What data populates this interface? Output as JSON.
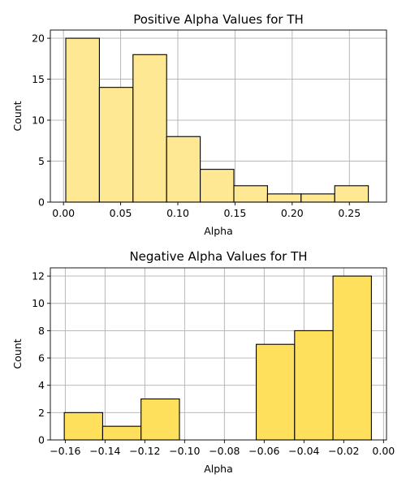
{
  "chart_data": [
    {
      "type": "bar",
      "title": "Positive Alpha Values for TH",
      "xlabel": "Alpha",
      "ylabel": "Count",
      "xlim": [
        -0.0115,
        0.2825
      ],
      "ylim": [
        0,
        21
      ],
      "xticks": [
        0.0,
        0.05,
        0.1,
        0.15,
        0.2,
        0.25
      ],
      "xtick_labels": [
        "0.00",
        "0.05",
        "0.10",
        "0.15",
        "0.20",
        "0.25"
      ],
      "yticks": [
        0,
        5,
        10,
        15,
        20
      ],
      "ytick_labels": [
        "0",
        "5",
        "10",
        "15",
        "20"
      ],
      "grid": true,
      "color": "#FFE893",
      "bins": [
        {
          "x0": 0.002,
          "x1": 0.0314,
          "count": 20
        },
        {
          "x0": 0.0314,
          "x1": 0.0608,
          "count": 14
        },
        {
          "x0": 0.0608,
          "x1": 0.0902,
          "count": 18
        },
        {
          "x0": 0.0902,
          "x1": 0.1196,
          "count": 8
        },
        {
          "x0": 0.1196,
          "x1": 0.149,
          "count": 4
        },
        {
          "x0": 0.149,
          "x1": 0.1784,
          "count": 2
        },
        {
          "x0": 0.1784,
          "x1": 0.2078,
          "count": 1
        },
        {
          "x0": 0.2078,
          "x1": 0.2372,
          "count": 1
        },
        {
          "x0": 0.2372,
          "x1": 0.2666,
          "count": 2
        }
      ]
    },
    {
      "type": "bar",
      "title": "Negative Alpha Values for TH",
      "xlabel": "Alpha",
      "ylabel": "Count",
      "xlim": [
        -0.1675,
        0.0015
      ],
      "ylim": [
        0,
        12.6
      ],
      "xticks": [
        -0.16,
        -0.14,
        -0.12,
        -0.1,
        -0.08,
        -0.06,
        -0.04,
        -0.02,
        0.0
      ],
      "xtick_labels": [
        "−0.16",
        "−0.14",
        "−0.12",
        "−0.10",
        "−0.08",
        "−0.06",
        "−0.04",
        "−0.02",
        "0.00"
      ],
      "yticks": [
        0,
        2,
        4,
        6,
        8,
        10,
        12
      ],
      "ytick_labels": [
        "0",
        "2",
        "4",
        "6",
        "8",
        "10",
        "12"
      ],
      "grid": true,
      "color": "#FFE05C",
      "bins": [
        {
          "x0": -0.1605,
          "x1": -0.1412,
          "count": 2
        },
        {
          "x0": -0.1412,
          "x1": -0.1219,
          "count": 1
        },
        {
          "x0": -0.1219,
          "x1": -0.1026,
          "count": 3
        },
        {
          "x0": -0.1026,
          "x1": -0.0833,
          "count": 0
        },
        {
          "x0": -0.0833,
          "x1": -0.064,
          "count": 0
        },
        {
          "x0": -0.064,
          "x1": -0.0447,
          "count": 7
        },
        {
          "x0": -0.0447,
          "x1": -0.0254,
          "count": 8
        },
        {
          "x0": -0.0254,
          "x1": -0.0061,
          "count": 12
        }
      ]
    }
  ]
}
